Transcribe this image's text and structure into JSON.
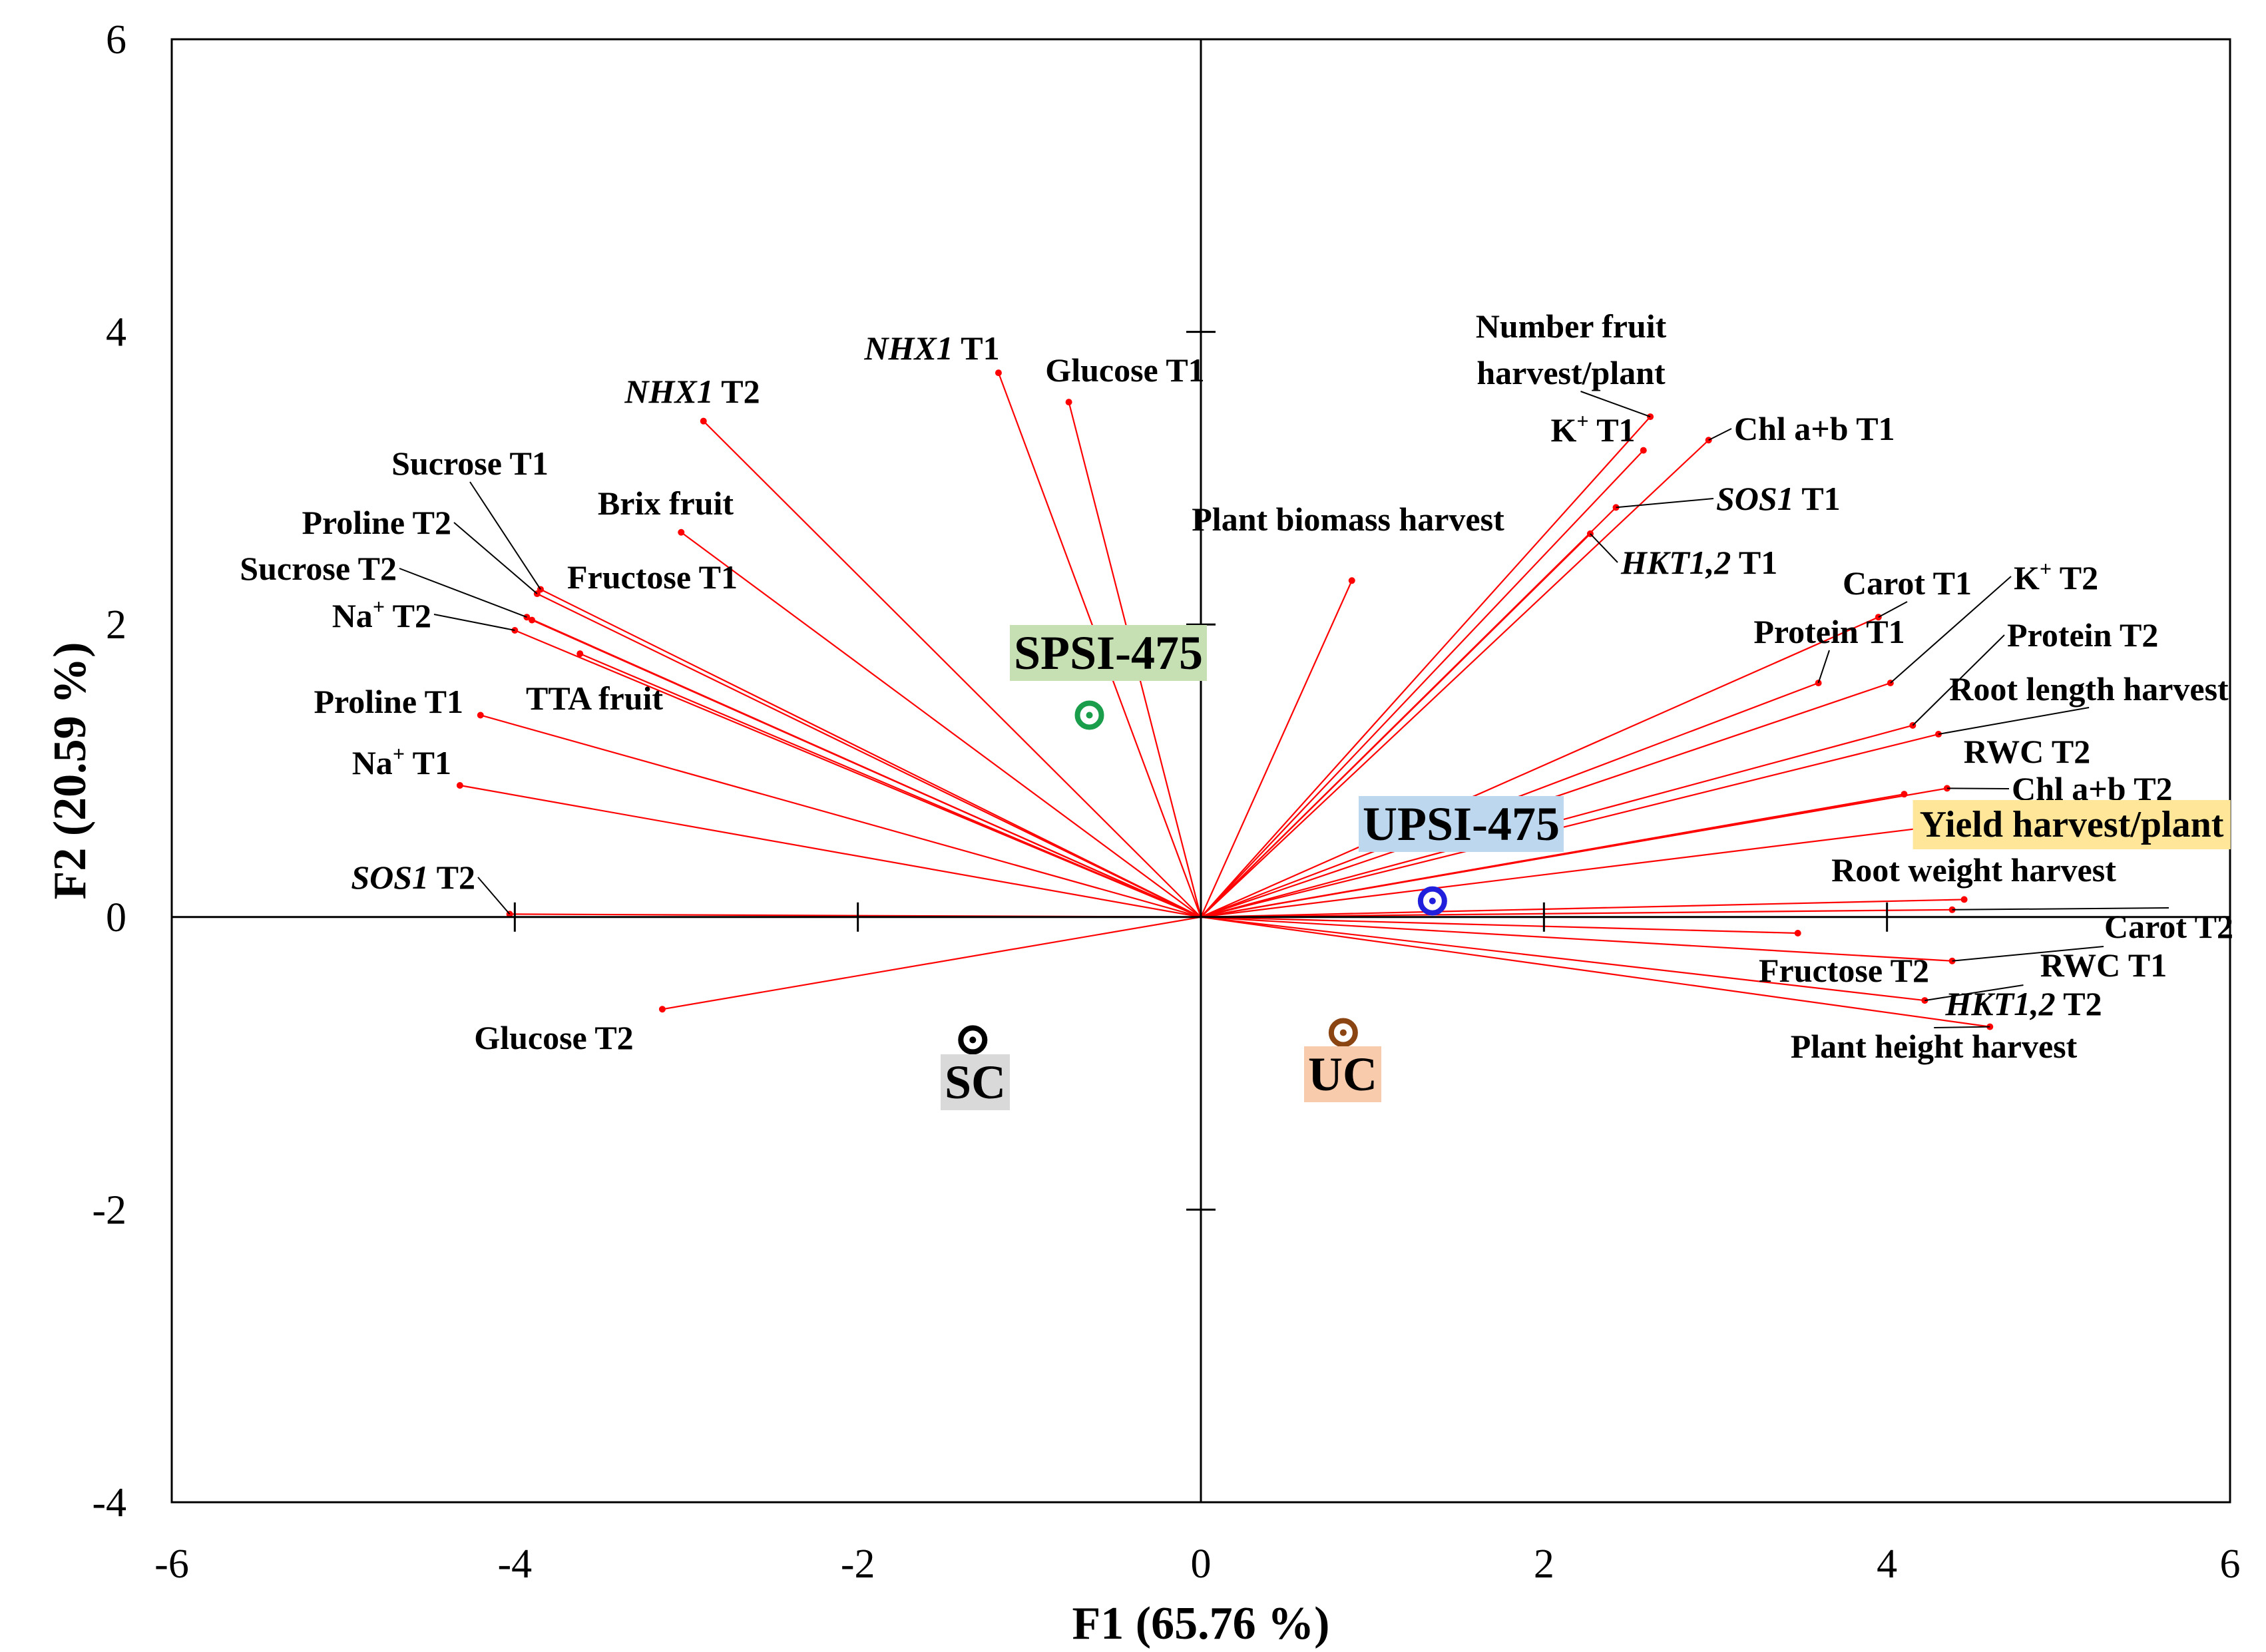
{
  "chart_data": {
    "type": "scatter",
    "subtype": "biplot",
    "xlabel": "F1 (65.76 %)",
    "ylabel": "F2 (20.59 %)",
    "xlim": [
      -6,
      6
    ],
    "ylim": [
      -4,
      6
    ],
    "xticks": [
      "-6",
      "-4",
      "-2",
      "0",
      "2",
      "4",
      "6"
    ],
    "yticks": [
      "-4",
      "-2",
      "0",
      "2",
      "4",
      "6"
    ],
    "grid": false,
    "vector_color": "#ff0000",
    "variables": [
      {
        "id": "nhx1-t1",
        "parts": [
          {
            "t": "NHX1",
            "i": true
          },
          {
            "t": " T1"
          }
        ],
        "x": -1.18,
        "y": 3.72
      },
      {
        "id": "glucose-t1",
        "parts": [
          {
            "t": "Glucose T1"
          }
        ],
        "x": -0.77,
        "y": 3.52
      },
      {
        "id": "nhx1-t2",
        "parts": [
          {
            "t": "NHX1",
            "i": true
          },
          {
            "t": " T2"
          }
        ],
        "x": -2.9,
        "y": 3.39
      },
      {
        "id": "brix-fruit",
        "parts": [
          {
            "t": "Brix fruit"
          }
        ],
        "x": -3.03,
        "y": 2.63
      },
      {
        "id": "sucrose-t1",
        "parts": [
          {
            "t": "Sucrose T1"
          }
        ],
        "x": -3.85,
        "y": 2.24
      },
      {
        "id": "proline-t2",
        "parts": [
          {
            "t": "Proline T2"
          }
        ],
        "x": -3.87,
        "y": 2.21
      },
      {
        "id": "sucrose-t2",
        "parts": [
          {
            "t": "Sucrose T2"
          }
        ],
        "x": -3.93,
        "y": 2.05
      },
      {
        "id": "fructose-t1",
        "parts": [
          {
            "t": "Fructose T1"
          }
        ],
        "x": -3.9,
        "y": 2.03
      },
      {
        "id": "na-t2",
        "parts": [
          {
            "t": "Na"
          },
          {
            "t": "+",
            "s": true
          },
          {
            "t": " T2"
          }
        ],
        "x": -4.0,
        "y": 1.96
      },
      {
        "id": "tta-fruit",
        "parts": [
          {
            "t": "TTA fruit"
          }
        ],
        "x": -3.62,
        "y": 1.8
      },
      {
        "id": "proline-t1",
        "parts": [
          {
            "t": "Proline T1"
          }
        ],
        "x": -4.2,
        "y": 1.38
      },
      {
        "id": "na-t1",
        "parts": [
          {
            "t": "Na"
          },
          {
            "t": "+",
            "s": true
          },
          {
            "t": " T1"
          }
        ],
        "x": -4.32,
        "y": 0.9
      },
      {
        "id": "sos1-t2",
        "parts": [
          {
            "t": "SOS1",
            "i": true
          },
          {
            "t": " T2"
          }
        ],
        "x": -4.03,
        "y": 0.02
      },
      {
        "id": "glucose-t2",
        "parts": [
          {
            "t": "Glucose T2"
          }
        ],
        "x": -3.14,
        "y": -0.63
      },
      {
        "id": "plant-biomass",
        "parts": [
          {
            "t": "Plant biomass harvest"
          }
        ],
        "x": 0.88,
        "y": 2.3
      },
      {
        "id": "number-fruit",
        "parts": [
          {
            "t": "Number fruit"
          }
        ],
        "line2": "harvest/plant",
        "x": 2.62,
        "y": 3.42
      },
      {
        "id": "k-t1",
        "parts": [
          {
            "t": "K"
          },
          {
            "t": "+",
            "s": true
          },
          {
            "t": " T1"
          }
        ],
        "x": 2.58,
        "y": 3.19
      },
      {
        "id": "chl-t1",
        "parts": [
          {
            "t": "Chl a+b T1"
          }
        ],
        "x": 2.96,
        "y": 3.26
      },
      {
        "id": "sos1-t1",
        "parts": [
          {
            "t": "SOS1",
            "i": true
          },
          {
            "t": " T1"
          }
        ],
        "x": 2.42,
        "y": 2.8
      },
      {
        "id": "hkt-t1",
        "parts": [
          {
            "t": "HKT1,2",
            "i": true
          },
          {
            "t": " T1"
          }
        ],
        "x": 2.27,
        "y": 2.62
      },
      {
        "id": "carot-t1",
        "parts": [
          {
            "t": "Carot T1"
          }
        ],
        "x": 3.95,
        "y": 2.05
      },
      {
        "id": "k-t2",
        "parts": [
          {
            "t": "K"
          },
          {
            "t": "+",
            "s": true
          },
          {
            "t": " T2"
          }
        ],
        "x": 4.02,
        "y": 1.6
      },
      {
        "id": "protein-t1",
        "parts": [
          {
            "t": "Protein T1"
          }
        ],
        "x": 3.6,
        "y": 1.6
      },
      {
        "id": "protein-t2",
        "parts": [
          {
            "t": "Protein T2"
          }
        ],
        "x": 4.15,
        "y": 1.31
      },
      {
        "id": "root-length",
        "parts": [
          {
            "t": "Root length harvest"
          }
        ],
        "x": 4.3,
        "y": 1.25
      },
      {
        "id": "rwc-t2",
        "parts": [
          {
            "t": "RWC T2"
          }
        ],
        "x": 4.1,
        "y": 0.84
      },
      {
        "id": "chl-t2",
        "parts": [
          {
            "t": "Chl a+b T2"
          }
        ],
        "x": 4.35,
        "y": 0.88
      },
      {
        "id": "yield",
        "parts": [
          {
            "t": "Yield harvest/plant"
          }
        ],
        "x": 4.7,
        "y": 0.68
      },
      {
        "id": "root-weight",
        "parts": [
          {
            "t": "Root weight harvest"
          }
        ],
        "x": 4.45,
        "y": 0.12
      },
      {
        "id": "carot-t2",
        "parts": [
          {
            "t": "Carot T2"
          }
        ],
        "x": 4.38,
        "y": 0.05
      },
      {
        "id": "fructose-t2",
        "parts": [
          {
            "t": "Fructose T2"
          }
        ],
        "x": 3.48,
        "y": -0.11
      },
      {
        "id": "rwc-t1",
        "parts": [
          {
            "t": "RWC T1"
          }
        ],
        "x": 4.38,
        "y": -0.3
      },
      {
        "id": "hkt-t2",
        "parts": [
          {
            "t": "HKT1,2",
            "i": true
          },
          {
            "t": " T2"
          }
        ],
        "x": 4.22,
        "y": -0.57
      },
      {
        "id": "plant-height",
        "parts": [
          {
            "t": "Plant height harvest"
          }
        ],
        "x": 4.6,
        "y": -0.75
      }
    ],
    "observations": [
      {
        "id": "spsi",
        "label": "SPSI-475",
        "x": -0.65,
        "y": 1.38,
        "color": "#1a9e4b",
        "label_bg": "#c6e0b4"
      },
      {
        "id": "upsi",
        "label": "UPSI-475",
        "x": 1.35,
        "y": 0.11,
        "color": "#1f1fdc",
        "label_bg": "#bdd7ee"
      },
      {
        "id": "sc",
        "label": "SC",
        "x": -1.33,
        "y": -0.84,
        "color": "#000000",
        "label_bg": "#d9d9d9"
      },
      {
        "id": "uc",
        "label": "UC",
        "x": 0.83,
        "y": -0.79,
        "color": "#8b4513",
        "label_bg": "#f8cbad"
      }
    ],
    "highlight": {
      "label": "Yield harvest/plant",
      "bg": "#ffe699"
    }
  }
}
